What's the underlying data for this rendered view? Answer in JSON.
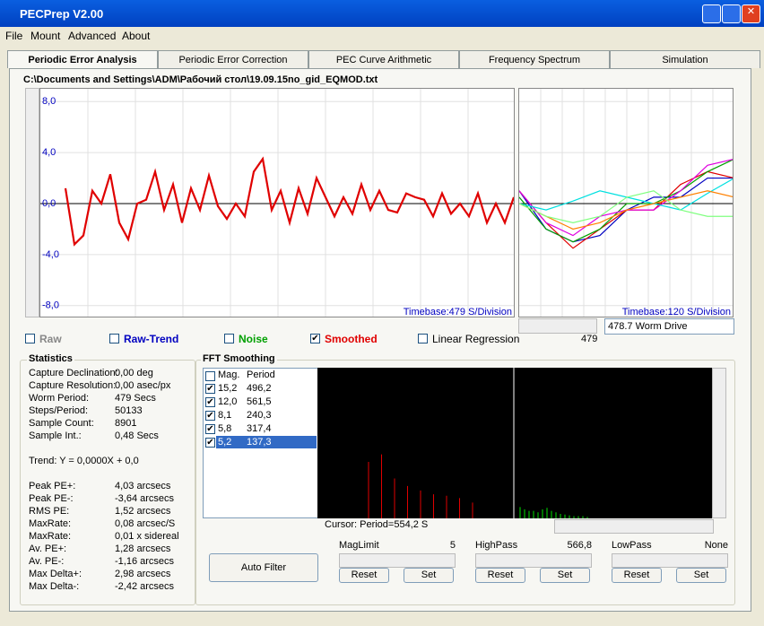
{
  "window": {
    "title": "PECPrep V2.00"
  },
  "menu": [
    "File",
    "Mount",
    "Advanced",
    "About"
  ],
  "tabs": [
    "Periodic Error Analysis",
    "Periodic Error Correction",
    "PEC Curve Arithmetic",
    "Frequency Spectrum",
    "Simulation"
  ],
  "file_path": "C:\\Documents and Settings\\ADM\\Рабочий стол\\19.09.15no_gid_EQMOD.txt",
  "chart_data": [
    {
      "type": "line",
      "ylim": [
        -9,
        9
      ],
      "yticks": [
        {
          "value": 8,
          "label": "8,0"
        },
        {
          "value": 4,
          "label": "4,0"
        },
        {
          "value": 0,
          "label": "0,0"
        },
        {
          "value": -4,
          "label": "-4,0"
        },
        {
          "value": -8,
          "label": "-8,0"
        }
      ],
      "grid": true,
      "annotation": "Timebase:479 S/Division",
      "series": [
        {
          "color": "#e00000",
          "values": [
            1.2,
            -3.2,
            -2.5,
            1.0,
            0.0,
            2.3,
            -1.5,
            -2.8,
            0.0,
            0.3,
            2.5,
            -0.5,
            1.5,
            -1.5,
            1.2,
            -0.5,
            2.2,
            -0.2,
            -1.2,
            0.0,
            -1.0,
            2.5,
            3.5,
            -0.5,
            1.0,
            -1.5,
            1.2,
            -0.8,
            2.0,
            0.5,
            -1.0,
            0.5,
            -0.8,
            1.5,
            -0.5,
            1.0,
            -0.5,
            -0.7,
            0.8,
            0.5,
            0.3,
            -1.0,
            0.8,
            -0.8,
            0.0,
            -1.0,
            0.8,
            -1.5,
            0.0,
            -1.5,
            0.5
          ]
        }
      ]
    },
    {
      "type": "line",
      "ylim": [
        -9,
        9
      ],
      "yticks": [
        {
          "value": 8,
          "label": "8,0"
        },
        {
          "value": 4,
          "label": "4,0"
        },
        {
          "value": 0,
          "label": "0,0"
        },
        {
          "value": -4,
          "label": "-4,0"
        },
        {
          "value": -8,
          "label": "-8,0"
        }
      ],
      "grid": true,
      "annotation": "Timebase:120 S/Division",
      "series": [
        {
          "color": "#0000c0",
          "values": [
            1,
            -2,
            -3,
            -2.5,
            -0.5,
            0.5,
            0.5,
            2,
            2
          ]
        },
        {
          "color": "#e00000",
          "values": [
            1,
            -1.5,
            -3.5,
            -2,
            -0.5,
            -0.5,
            1.5,
            2.5,
            2
          ]
        },
        {
          "color": "#00a000",
          "values": [
            0.5,
            -2,
            -3,
            -2,
            0,
            0,
            1,
            2.5,
            3.5
          ]
        },
        {
          "color": "#e000e0",
          "values": [
            1,
            -1.5,
            -2.5,
            -1,
            -0.5,
            -0.5,
            1,
            3,
            3.5
          ]
        },
        {
          "color": "#00e0e0",
          "values": [
            0,
            -0.5,
            0.2,
            1,
            0.5,
            0,
            -0.5,
            0.8,
            2
          ]
        },
        {
          "color": "#ff8000",
          "values": [
            0,
            -1,
            -2,
            -1.5,
            -0.5,
            0,
            0.5,
            1,
            0.5
          ]
        },
        {
          "color": "#80ff80",
          "values": [
            0,
            -1,
            -1.5,
            -1,
            0.5,
            1,
            -0.5,
            -1,
            -1
          ]
        }
      ]
    },
    {
      "type": "bar",
      "ylim": [
        0,
        20
      ],
      "annotation": "Cursor: Period=554,2 S",
      "series": [
        {
          "color": "#e00000",
          "values": [
            7.5,
            8.5,
            5.3,
            4.3,
            3.7,
            3.2,
            3.0,
            2.7,
            2.1
          ]
        },
        {
          "color": "#00e000",
          "values": [
            1.5,
            1.2,
            1.0,
            1.0,
            0.8,
            1.2,
            1.4,
            1.0,
            0.8,
            0.6,
            0.5,
            0.4,
            0.3,
            0.3,
            0.3,
            0.2
          ]
        }
      ]
    }
  ],
  "scroll_value": "479",
  "worm_drive": "478.7 Worm Drive",
  "checkboxes": [
    {
      "label": "Raw",
      "checked": false,
      "color": "#888888"
    },
    {
      "label": "Raw-Trend",
      "checked": false,
      "color": "#0000c0"
    },
    {
      "label": "Noise",
      "checked": false,
      "color": "#00a000"
    },
    {
      "label": "Smoothed",
      "checked": true,
      "color": "#e00000"
    },
    {
      "label": "Linear Regression",
      "checked": false,
      "color": "#000000"
    }
  ],
  "statistics": {
    "title": "Statistics",
    "rows": [
      [
        "Capture Declination:",
        "0,00 deg"
      ],
      [
        "Capture Resolution:",
        "0,00 asec/px"
      ],
      [
        "Worm Period:",
        "479 Secs"
      ],
      [
        "Steps/Period:",
        "50133"
      ],
      [
        "Sample Count:",
        "8901"
      ],
      [
        "Sample Int.:",
        "0,48 Secs"
      ]
    ],
    "trend": "Trend: Y = 0,0000X + 0,0",
    "rows2": [
      [
        "Peak PE+:",
        "4,03 arcsecs"
      ],
      [
        "Peak PE-:",
        "-3,64 arcsecs"
      ],
      [
        "RMS PE:",
        "1,52 arcsecs"
      ],
      [
        "MaxRate:",
        "0,08 arcsec/S"
      ],
      [
        "MaxRate:",
        "0,01 x sidereal"
      ],
      [
        "Av. PE+:",
        "1,28 arcsecs"
      ],
      [
        "Av. PE-:",
        "-1,16 arcsecs"
      ],
      [
        "Max Delta+:",
        "2,98 arcsecs"
      ],
      [
        "Max Delta-:",
        "-2,42 arcsecs"
      ]
    ]
  },
  "fft": {
    "title": "FFT Smoothing",
    "header": [
      "Mag.",
      "Period"
    ],
    "rows": [
      [
        "15,2",
        "496,2"
      ],
      [
        "12,0",
        "561,5"
      ],
      [
        "8,1",
        "240,3"
      ],
      [
        "5,8",
        "317,4"
      ],
      [
        "5,2",
        "137,3"
      ]
    ],
    "auto_filter": "Auto Filter",
    "sliders": [
      {
        "label": "MagLimit",
        "value": "5"
      },
      {
        "label": "HighPass",
        "value": "566,8"
      },
      {
        "label": "LowPass",
        "value": "None"
      }
    ],
    "reset": "Reset",
    "set": "Set"
  }
}
